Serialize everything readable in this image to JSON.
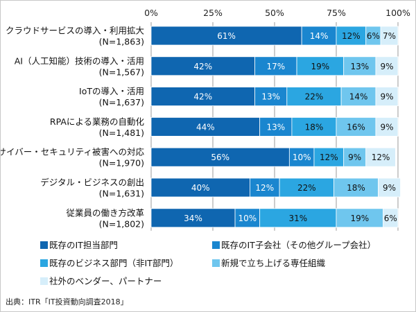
{
  "chart_data": {
    "type": "bar",
    "orientation": "horizontal",
    "stacked": true,
    "percent_axis": true,
    "xlim": [
      0,
      100
    ],
    "xticks": [
      "0%",
      "25%",
      "50%",
      "75%",
      "100%"
    ],
    "value_suffix": "%",
    "grid": true,
    "legend_placement": "bottom",
    "categories": [
      {
        "label": "クラウドサービスの導入・利用拡大",
        "n": "(N=1,863)"
      },
      {
        "label": "AI（人工知能）技術の導入・活用",
        "n": "(N=1,567)"
      },
      {
        "label": "IoTの導入・活用",
        "n": "(N=1,637)"
      },
      {
        "label": "RPAによる業務の自動化",
        "n": "(N=1,481)"
      },
      {
        "label": "サイバー・セキュリティ被害への対応",
        "n": "(N=1,970)"
      },
      {
        "label": "デジタル・ビジネスの創出",
        "n": "(N=1,631)"
      },
      {
        "label": "従業員の働き方改革",
        "n": "(N=1,802)"
      }
    ],
    "series": [
      {
        "name": "既存のIT担当部門",
        "color": "#0f66b0",
        "label_color": "#ffffff",
        "values": [
          61,
          42,
          42,
          44,
          56,
          40,
          34
        ]
      },
      {
        "name": "既存のIT子会社（その他グループ会社）",
        "color": "#1a86cf",
        "label_color": "#ffffff",
        "values": [
          14,
          17,
          13,
          13,
          10,
          12,
          10
        ]
      },
      {
        "name": "既存のビジネス部門（非IT部門）",
        "color": "#2ba6e1",
        "label_color": "#111111",
        "values": [
          12,
          19,
          22,
          18,
          12,
          22,
          31
        ]
      },
      {
        "name": "新規で立ち上げる専任組織",
        "color": "#6fc6ee",
        "label_color": "#111111",
        "values": [
          6,
          13,
          14,
          16,
          9,
          18,
          19
        ]
      },
      {
        "name": "社外のベンダー、パートナー",
        "color": "#d6eefa",
        "label_color": "#111111",
        "values": [
          7,
          9,
          9,
          9,
          12,
          9,
          6
        ]
      }
    ]
  },
  "source": "出典：ITR「IT投資動向調査2018」"
}
